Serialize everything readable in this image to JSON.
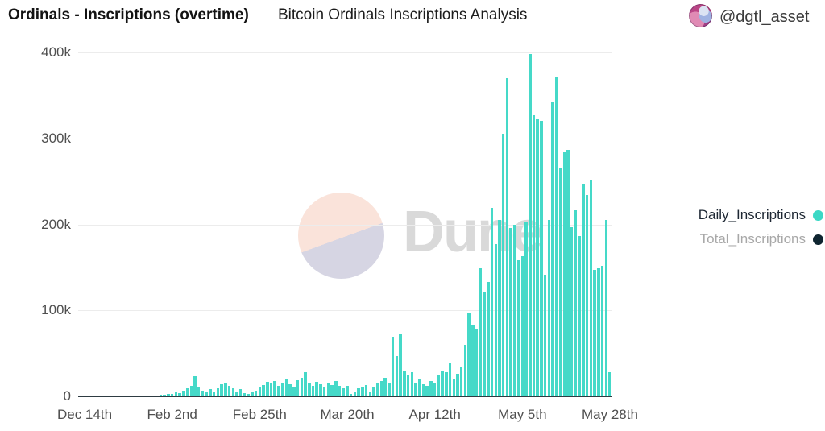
{
  "header": {
    "title": "Ordinals - Inscriptions (overtime)",
    "subtitle": "Bitcoin Ordinals Inscriptions Analysis",
    "user_handle": "@dgtl_asset"
  },
  "watermark": {
    "text": "Dune"
  },
  "legend": [
    {
      "label": "Daily_Inscriptions",
      "color": "#3bd8c5",
      "active": true
    },
    {
      "label": "Total_Inscriptions",
      "color": "#0f2530",
      "active": false
    }
  ],
  "colors": {
    "bar": "#45d9c8",
    "axis_line": "#2e3b42",
    "gridline": "#ececec",
    "tick_text": "#4f4f4f"
  },
  "chart_data": {
    "type": "bar",
    "title": "Bitcoin Ordinals Inscriptions Analysis",
    "series_name": "Daily_Inscriptions",
    "xlabel": "",
    "ylabel": "",
    "ylim": [
      0,
      400000
    ],
    "grid": "horizontal",
    "legend_position": "right",
    "y_tick_labels": [
      "400k",
      "300k",
      "200k",
      "100k",
      "0"
    ],
    "x_tick_labels": [
      "Dec 14th",
      "Feb 2nd",
      "Feb 25th",
      "Mar 20th",
      "Apr 12th",
      "May 5th",
      "May 28th"
    ],
    "x_tick_indices": [
      0,
      23,
      46,
      69,
      92,
      115,
      138
    ],
    "values": [
      100,
      150,
      200,
      120,
      300,
      200,
      400,
      300,
      250,
      400,
      500,
      350,
      600,
      450,
      700,
      500,
      800,
      600,
      900,
      1200,
      1500,
      2000,
      2500,
      3000,
      5000,
      4000,
      7000,
      9000,
      12000,
      23000,
      10000,
      7000,
      6000,
      8000,
      5000,
      9000,
      14000,
      15000,
      12000,
      9000,
      6000,
      8000,
      4000,
      3000,
      6000,
      7000,
      10000,
      13000,
      17000,
      15000,
      18000,
      12000,
      16000,
      20000,
      14000,
      11000,
      19000,
      22000,
      28000,
      15000,
      12000,
      17000,
      14000,
      10000,
      16000,
      13000,
      18000,
      12000,
      9000,
      12000,
      3000,
      5000,
      9000,
      11000,
      13000,
      6000,
      10000,
      15000,
      18000,
      22000,
      16000,
      69000,
      47000,
      73000,
      30000,
      25000,
      28000,
      16000,
      20000,
      14000,
      12000,
      18000,
      15000,
      25000,
      30000,
      28000,
      38000,
      20000,
      26000,
      35000,
      60000,
      97000,
      83000,
      79000,
      149000,
      122000,
      133000,
      219000,
      177000,
      205000,
      305000,
      370000,
      196000,
      200000,
      158000,
      163000,
      202000,
      398000,
      327000,
      322000,
      320000,
      141000,
      205000,
      342000,
      372000,
      266000,
      284000,
      287000,
      197000,
      216000,
      186000,
      246000,
      234000,
      252000,
      147000,
      149000,
      152000,
      205000,
      28000
    ]
  }
}
